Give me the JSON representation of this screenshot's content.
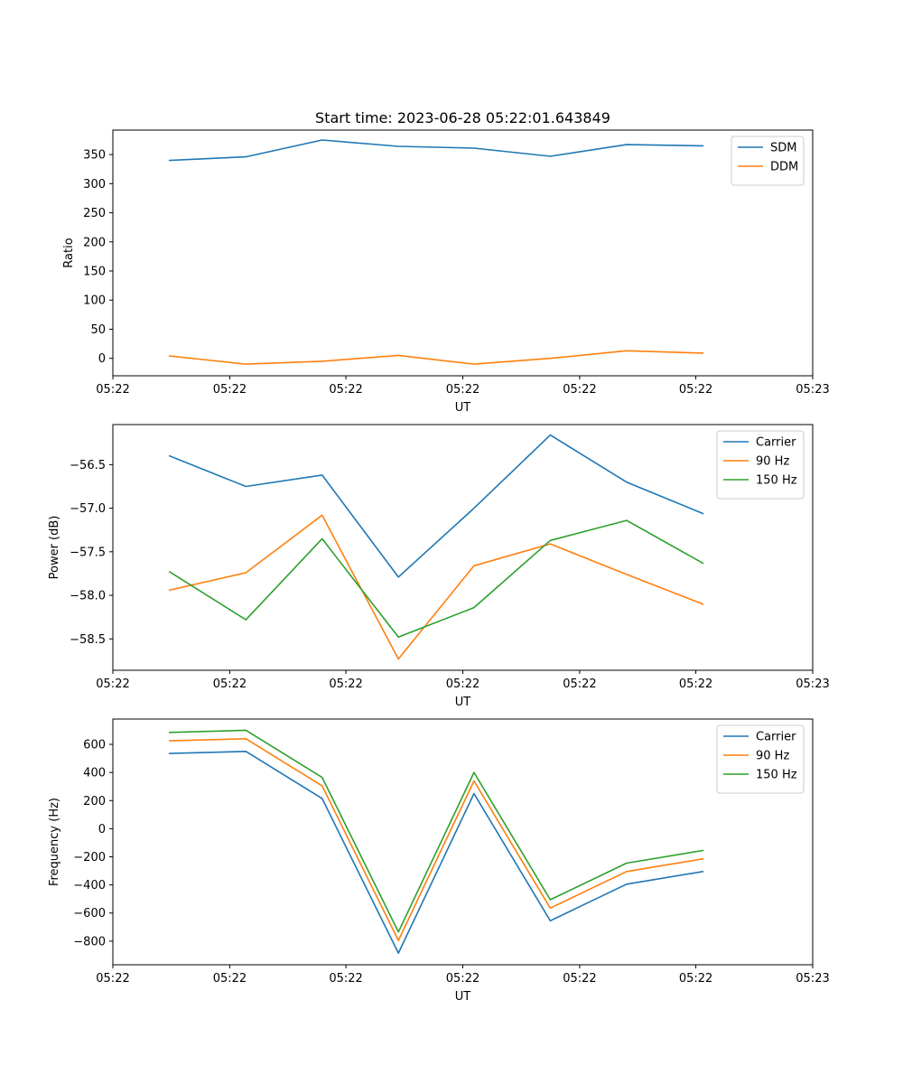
{
  "figure": {
    "title": "Start time: 2023-06-28 05:22:01.643849"
  },
  "chart_data": [
    {
      "type": "line",
      "title": "Start time: 2023-06-28 05:22:01.643849",
      "xlabel": "UT",
      "ylabel": "Ratio",
      "xlim": [
        0,
        1
      ],
      "ylim": [
        -30,
        392
      ],
      "x_ticks": [
        0,
        0.167,
        0.333,
        0.5,
        0.667,
        0.833,
        1.0
      ],
      "x_tick_labels": [
        "05:22",
        "05:22",
        "05:22",
        "05:22",
        "05:22",
        "05:22",
        "05:23"
      ],
      "y_ticks": [
        0,
        50,
        100,
        150,
        200,
        250,
        300,
        350
      ],
      "y_tick_labels": [
        "0",
        "50",
        "100",
        "150",
        "200",
        "250",
        "300",
        "350"
      ],
      "x": [
        0.081,
        0.19,
        0.299,
        0.408,
        0.516,
        0.625,
        0.734,
        0.843
      ],
      "legend_position": "top-right",
      "grid": false,
      "series": [
        {
          "name": "SDM",
          "color": "#1f77b4",
          "values": [
            340,
            346,
            375,
            364,
            361,
            347,
            367,
            365
          ]
        },
        {
          "name": "DDM",
          "color": "#ff7f0e",
          "values": [
            4,
            -10,
            -5,
            5,
            -10,
            0,
            13,
            9
          ]
        }
      ]
    },
    {
      "type": "line",
      "xlabel": "UT",
      "ylabel": "Power (dB)",
      "xlim": [
        0,
        1
      ],
      "ylim": [
        -58.86,
        -56.04
      ],
      "x_ticks": [
        0,
        0.167,
        0.333,
        0.5,
        0.667,
        0.833,
        1.0
      ],
      "x_tick_labels": [
        "05:22",
        "05:22",
        "05:22",
        "05:22",
        "05:22",
        "05:22",
        "05:23"
      ],
      "y_ticks": [
        -58.5,
        -58.0,
        -57.5,
        -57.0,
        -56.5
      ],
      "y_tick_labels": [
        "−58.5",
        "−58.0",
        "−57.5",
        "−57.0",
        "−56.5"
      ],
      "x": [
        0.081,
        0.19,
        0.299,
        0.408,
        0.516,
        0.625,
        0.734,
        0.843
      ],
      "legend_position": "top-right",
      "grid": false,
      "series": [
        {
          "name": "Carrier",
          "color": "#1f77b4",
          "values": [
            -56.4,
            -56.75,
            -56.62,
            -57.79,
            -57.0,
            -56.16,
            -56.7,
            -57.06
          ]
        },
        {
          "name": "90 Hz",
          "color": "#ff7f0e",
          "values": [
            -57.94,
            -57.74,
            -57.08,
            -58.73,
            -57.66,
            -57.41,
            -57.76,
            -58.1
          ]
        },
        {
          "name": "150 Hz",
          "color": "#2ca02c",
          "values": [
            -57.73,
            -58.28,
            -57.35,
            -58.48,
            -58.14,
            -57.37,
            -57.14,
            -57.63
          ]
        }
      ]
    },
    {
      "type": "line",
      "xlabel": "UT",
      "ylabel": "Frequency (Hz)",
      "xlim": [
        0,
        1
      ],
      "ylim": [
        -968,
        780
      ],
      "x_ticks": [
        0,
        0.167,
        0.333,
        0.5,
        0.667,
        0.833,
        1.0
      ],
      "x_tick_labels": [
        "05:22",
        "05:22",
        "05:22",
        "05:22",
        "05:22",
        "05:22",
        "05:23"
      ],
      "y_ticks": [
        -800,
        -600,
        -400,
        -200,
        0,
        200,
        400,
        600
      ],
      "y_tick_labels": [
        "−800",
        "−600",
        "−400",
        "−200",
        "0",
        "200",
        "400",
        "600"
      ],
      "x": [
        0.081,
        0.19,
        0.299,
        0.408,
        0.516,
        0.625,
        0.734,
        0.843
      ],
      "legend_position": "top-right",
      "grid": false,
      "series": [
        {
          "name": "Carrier",
          "color": "#1f77b4",
          "values": [
            535,
            550,
            215,
            -885,
            250,
            -655,
            -395,
            -305
          ]
        },
        {
          "name": "90 Hz",
          "color": "#ff7f0e",
          "values": [
            625,
            640,
            305,
            -795,
            340,
            -565,
            -305,
            -215
          ]
        },
        {
          "name": "150 Hz",
          "color": "#2ca02c",
          "values": [
            685,
            700,
            365,
            -735,
            400,
            -505,
            -245,
            -155
          ]
        }
      ]
    }
  ]
}
